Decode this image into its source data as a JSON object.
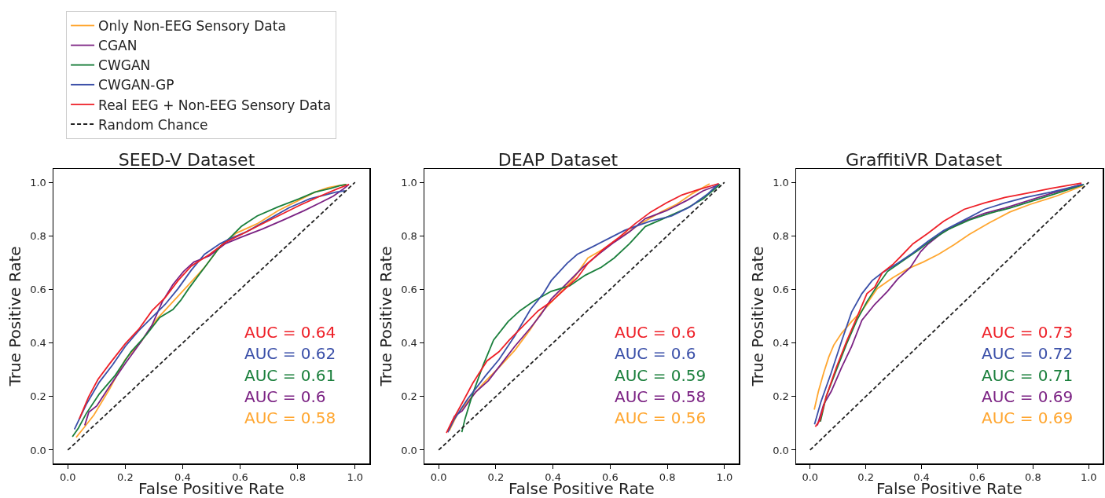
{
  "chart_data": [
    {
      "type": "line",
      "title": "SEED-V Dataset",
      "xlabel": "False Positive Rate",
      "ylabel": "True Positive Rate",
      "legend": "top left",
      "grid": false,
      "xlim": [
        -0.05,
        1.05
      ],
      "xticks": [
        {
          "value": 0,
          "label": "0.0"
        },
        {
          "value": 0.2,
          "label": "0.2"
        },
        {
          "value": 0.4,
          "label": "0.4"
        },
        {
          "value": 0.6,
          "label": "0.6"
        },
        {
          "value": 0.8,
          "label": "0.8"
        },
        {
          "value": 1,
          "label": "1.0"
        }
      ],
      "ylim": [
        -0.05,
        1.05
      ],
      "yticks": [
        {
          "value": 0,
          "label": "0.0"
        },
        {
          "value": 0.2,
          "label": "0.2"
        },
        {
          "value": 0.4,
          "label": "0.4"
        },
        {
          "value": 0.6,
          "label": "0.6"
        },
        {
          "value": 0.8,
          "label": "0.8"
        },
        {
          "value": 1,
          "label": "1.0"
        }
      ],
      "annotations": [
        "AUC = 0.64",
        "AUC = 0.62",
        "AUC = 0.61",
        "AUC = 0.6",
        "AUC = 0.58"
      ],
      "series": [
        {
          "name": "Only Non-EEG Sensory Data",
          "color": "#ffa630",
          "x": [
            0.029,
            0.059,
            0.091,
            0.146,
            0.2,
            0.256,
            0.311,
            0.366,
            0.421,
            0.476,
            0.531,
            0.586,
            0.659,
            0.732,
            0.805,
            0.86,
            0.906,
            0.942,
            0.97
          ],
          "values": [
            0.047,
            0.087,
            0.131,
            0.229,
            0.338,
            0.406,
            0.49,
            0.554,
            0.618,
            0.682,
            0.761,
            0.81,
            0.845,
            0.894,
            0.933,
            0.963,
            0.98,
            0.987,
            0.992
          ]
        },
        {
          "name": "CGAN",
          "color": "#7b2283",
          "x": [
            0.059,
            0.073,
            0.101,
            0.146,
            0.2,
            0.256,
            0.293,
            0.329,
            0.366,
            0.403,
            0.439,
            0.494,
            0.549,
            0.604,
            0.677,
            0.75,
            0.823,
            0.878,
            0.924,
            0.956,
            0.979
          ],
          "values": [
            0.092,
            0.141,
            0.165,
            0.239,
            0.323,
            0.406,
            0.466,
            0.554,
            0.618,
            0.667,
            0.702,
            0.726,
            0.771,
            0.795,
            0.825,
            0.859,
            0.894,
            0.923,
            0.948,
            0.972,
            0.992
          ]
        },
        {
          "name": "CWGAN",
          "color": "#1a7f3c",
          "x": [
            0.016,
            0.037,
            0.064,
            0.11,
            0.165,
            0.22,
            0.274,
            0.32,
            0.366,
            0.393,
            0.421,
            0.476,
            0.531,
            0.567,
            0.604,
            0.659,
            0.732,
            0.805,
            0.86,
            0.915,
            0.947,
            0.97
          ],
          "values": [
            0.05,
            0.082,
            0.136,
            0.21,
            0.279,
            0.367,
            0.431,
            0.495,
            0.525,
            0.559,
            0.603,
            0.682,
            0.761,
            0.795,
            0.835,
            0.874,
            0.908,
            0.938,
            0.963,
            0.977,
            0.987,
            0.992
          ]
        },
        {
          "name": "CWGAN-GP",
          "color": "#3a4fa8",
          "x": [
            0.023,
            0.064,
            0.11,
            0.156,
            0.2,
            0.247,
            0.293,
            0.339,
            0.384,
            0.43,
            0.476,
            0.531,
            0.567,
            0.622,
            0.695,
            0.769,
            0.842,
            0.897,
            0.933,
            0.965
          ],
          "values": [
            0.077,
            0.17,
            0.254,
            0.318,
            0.387,
            0.446,
            0.495,
            0.544,
            0.603,
            0.672,
            0.731,
            0.771,
            0.79,
            0.815,
            0.859,
            0.904,
            0.938,
            0.953,
            0.963,
            0.968
          ]
        },
        {
          "name": "Real EEG + Non-EEG Sensory Data",
          "color": "#ee2028",
          "x": [
            0.04,
            0.073,
            0.105,
            0.146,
            0.2,
            0.247,
            0.293,
            0.339,
            0.384,
            0.43,
            0.494,
            0.549,
            0.604,
            0.659,
            0.732,
            0.805,
            0.878,
            0.942,
            0.979
          ],
          "values": [
            0.116,
            0.2,
            0.264,
            0.323,
            0.397,
            0.451,
            0.52,
            0.569,
            0.633,
            0.687,
            0.731,
            0.776,
            0.805,
            0.835,
            0.874,
            0.913,
            0.948,
            0.977,
            0.992
          ]
        },
        {
          "name": "Random Chance",
          "color": "#222222",
          "line_style": "dashed",
          "x": [
            0,
            1
          ],
          "values": [
            0,
            1
          ]
        }
      ]
    },
    {
      "type": "line",
      "title": "DEAP Dataset",
      "xlabel": "False Positive Rate",
      "ylabel": "True Positive Rate",
      "grid": false,
      "xlim": [
        -0.05,
        1.05
      ],
      "xticks": [
        {
          "value": 0,
          "label": "0.0"
        },
        {
          "value": 0.2,
          "label": "0.2"
        },
        {
          "value": 0.4,
          "label": "0.4"
        },
        {
          "value": 0.6,
          "label": "0.6"
        },
        {
          "value": 0.8,
          "label": "0.8"
        },
        {
          "value": 1,
          "label": "1.0"
        }
      ],
      "ylim": [
        -0.05,
        1.05
      ],
      "yticks": [
        {
          "value": 0,
          "label": "0.0"
        },
        {
          "value": 0.2,
          "label": "0.2"
        },
        {
          "value": 0.4,
          "label": "0.4"
        },
        {
          "value": 0.6,
          "label": "0.6"
        },
        {
          "value": 0.8,
          "label": "0.8"
        },
        {
          "value": 1,
          "label": "1.0"
        }
      ],
      "annotations": [
        "AUC = 0.6",
        "AUC = 0.6",
        "AUC = 0.59",
        "AUC = 0.58",
        "AUC = 0.56"
      ],
      "series": [
        {
          "color": "#ffa630",
          "x": [
            0.037,
            0.064,
            0.101,
            0.156,
            0.211,
            0.266,
            0.321,
            0.357,
            0.412,
            0.467,
            0.522,
            0.577,
            0.632,
            0.705,
            0.778,
            0.833,
            0.888,
            0.948
          ],
          "values": [
            0.072,
            0.131,
            0.18,
            0.249,
            0.308,
            0.372,
            0.451,
            0.51,
            0.574,
            0.633,
            0.717,
            0.751,
            0.791,
            0.845,
            0.889,
            0.918,
            0.958,
            0.994
          ]
        },
        {
          "color": "#7b2283",
          "x": [
            0.032,
            0.055,
            0.082,
            0.128,
            0.174,
            0.22,
            0.266,
            0.321,
            0.357,
            0.394,
            0.449,
            0.504,
            0.559,
            0.614,
            0.668,
            0.723,
            0.797,
            0.87,
            0.925,
            0.971
          ],
          "values": [
            0.067,
            0.126,
            0.146,
            0.215,
            0.259,
            0.323,
            0.387,
            0.456,
            0.505,
            0.564,
            0.623,
            0.682,
            0.731,
            0.776,
            0.815,
            0.864,
            0.894,
            0.933,
            0.968,
            0.987
          ]
        },
        {
          "color": "#1a7f3c",
          "x": [
            0.081,
            0.092,
            0.119,
            0.156,
            0.192,
            0.243,
            0.284,
            0.33,
            0.394,
            0.458,
            0.513,
            0.568,
            0.614,
            0.668,
            0.723,
            0.797,
            0.87,
            0.925,
            0.984
          ],
          "values": [
            0.067,
            0.116,
            0.21,
            0.318,
            0.411,
            0.48,
            0.52,
            0.554,
            0.593,
            0.613,
            0.653,
            0.682,
            0.717,
            0.771,
            0.835,
            0.869,
            0.904,
            0.938,
            0.992
          ]
        },
        {
          "color": "#3a4fa8",
          "x": [
            0.032,
            0.055,
            0.101,
            0.165,
            0.211,
            0.266,
            0.321,
            0.366,
            0.394,
            0.449,
            0.485,
            0.54,
            0.595,
            0.65,
            0.687,
            0.742,
            0.815,
            0.879,
            0.943,
            0.98
          ],
          "values": [
            0.067,
            0.116,
            0.19,
            0.279,
            0.338,
            0.426,
            0.525,
            0.584,
            0.633,
            0.697,
            0.731,
            0.76,
            0.79,
            0.82,
            0.835,
            0.855,
            0.874,
            0.908,
            0.958,
            0.995
          ]
        },
        {
          "color": "#ee2028",
          "x": [
            0.027,
            0.046,
            0.082,
            0.119,
            0.169,
            0.211,
            0.247,
            0.302,
            0.348,
            0.394,
            0.449,
            0.485,
            0.522,
            0.577,
            0.632,
            0.687,
            0.742,
            0.797,
            0.852,
            0.907,
            0.98
          ],
          "values": [
            0.064,
            0.106,
            0.175,
            0.249,
            0.333,
            0.367,
            0.411,
            0.47,
            0.52,
            0.554,
            0.608,
            0.643,
            0.697,
            0.751,
            0.795,
            0.845,
            0.889,
            0.923,
            0.953,
            0.972,
            0.995
          ]
        },
        {
          "color": "#222222",
          "line_style": "dashed",
          "x": [
            0,
            1
          ],
          "values": [
            0,
            1
          ]
        }
      ]
    },
    {
      "type": "line",
      "title": "GraffitiVR Dataset",
      "xlabel": "False Positive Rate",
      "ylabel": "True Positive Rate",
      "grid": false,
      "xlim": [
        -0.05,
        1.05
      ],
      "xticks": [
        {
          "value": 0,
          "label": "0.0"
        },
        {
          "value": 0.2,
          "label": "0.2"
        },
        {
          "value": 0.4,
          "label": "0.4"
        },
        {
          "value": 0.6,
          "label": "0.6"
        },
        {
          "value": 0.8,
          "label": "0.8"
        },
        {
          "value": 1,
          "label": "1.0"
        }
      ],
      "ylim": [
        -0.05,
        1.05
      ],
      "yticks": [
        {
          "value": 0,
          "label": "0.0"
        },
        {
          "value": 0.2,
          "label": "0.2"
        },
        {
          "value": 0.4,
          "label": "0.4"
        },
        {
          "value": 0.6,
          "label": "0.6"
        },
        {
          "value": 0.8,
          "label": "0.8"
        },
        {
          "value": 1,
          "label": "1.0"
        }
      ],
      "annotations": [
        "AUC = 0.73",
        "AUC = 0.72",
        "AUC = 0.71",
        "AUC = 0.69",
        "AUC = 0.69"
      ],
      "series": [
        {
          "color": "#ffa630",
          "x": [
            0.015,
            0.03,
            0.049,
            0.067,
            0.085,
            0.113,
            0.149,
            0.186,
            0.241,
            0.296,
            0.351,
            0.406,
            0.461,
            0.516,
            0.571,
            0.644,
            0.717,
            0.791,
            0.883,
            0.979
          ],
          "values": [
            0.151,
            0.219,
            0.289,
            0.347,
            0.392,
            0.436,
            0.48,
            0.52,
            0.603,
            0.643,
            0.677,
            0.702,
            0.731,
            0.766,
            0.805,
            0.849,
            0.889,
            0.918,
            0.948,
            0.987
          ]
        },
        {
          "color": "#7b2283",
          "x": [
            0.026,
            0.049,
            0.076,
            0.113,
            0.149,
            0.186,
            0.232,
            0.278,
            0.314,
            0.36,
            0.397,
            0.424,
            0.479,
            0.553,
            0.626,
            0.699,
            0.773,
            0.864,
            0.974
          ],
          "values": [
            0.092,
            0.171,
            0.219,
            0.308,
            0.387,
            0.485,
            0.544,
            0.593,
            0.638,
            0.682,
            0.741,
            0.77,
            0.815,
            0.855,
            0.884,
            0.904,
            0.928,
            0.958,
            0.992
          ]
        },
        {
          "color": "#1a7f3c",
          "x": [
            0.037,
            0.058,
            0.094,
            0.131,
            0.168,
            0.204,
            0.241,
            0.278,
            0.333,
            0.388,
            0.443,
            0.498,
            0.571,
            0.644,
            0.717,
            0.791,
            0.883,
            0.983
          ],
          "values": [
            0.106,
            0.2,
            0.298,
            0.396,
            0.485,
            0.554,
            0.613,
            0.667,
            0.707,
            0.746,
            0.79,
            0.825,
            0.859,
            0.884,
            0.904,
            0.928,
            0.958,
            0.992
          ]
        },
        {
          "color": "#3a4fa8",
          "x": [
            0.016,
            0.039,
            0.076,
            0.113,
            0.149,
            0.186,
            0.223,
            0.259,
            0.314,
            0.369,
            0.424,
            0.479,
            0.553,
            0.626,
            0.699,
            0.773,
            0.864,
            0.979
          ],
          "values": [
            0.096,
            0.18,
            0.289,
            0.406,
            0.515,
            0.584,
            0.633,
            0.662,
            0.697,
            0.736,
            0.78,
            0.82,
            0.859,
            0.899,
            0.923,
            0.943,
            0.963,
            0.992
          ]
        },
        {
          "color": "#ee2028",
          "x": [
            0.019,
            0.035,
            0.058,
            0.094,
            0.131,
            0.168,
            0.204,
            0.232,
            0.259,
            0.296,
            0.333,
            0.369,
            0.424,
            0.479,
            0.553,
            0.626,
            0.699,
            0.773,
            0.864,
            0.974
          ],
          "values": [
            0.087,
            0.111,
            0.2,
            0.308,
            0.406,
            0.495,
            0.584,
            0.608,
            0.662,
            0.692,
            0.731,
            0.77,
            0.81,
            0.854,
            0.899,
            0.923,
            0.943,
            0.958,
            0.977,
            0.997
          ]
        },
        {
          "color": "#222222",
          "line_style": "dashed",
          "x": [
            0,
            1
          ],
          "values": [
            0,
            1
          ]
        }
      ]
    }
  ]
}
